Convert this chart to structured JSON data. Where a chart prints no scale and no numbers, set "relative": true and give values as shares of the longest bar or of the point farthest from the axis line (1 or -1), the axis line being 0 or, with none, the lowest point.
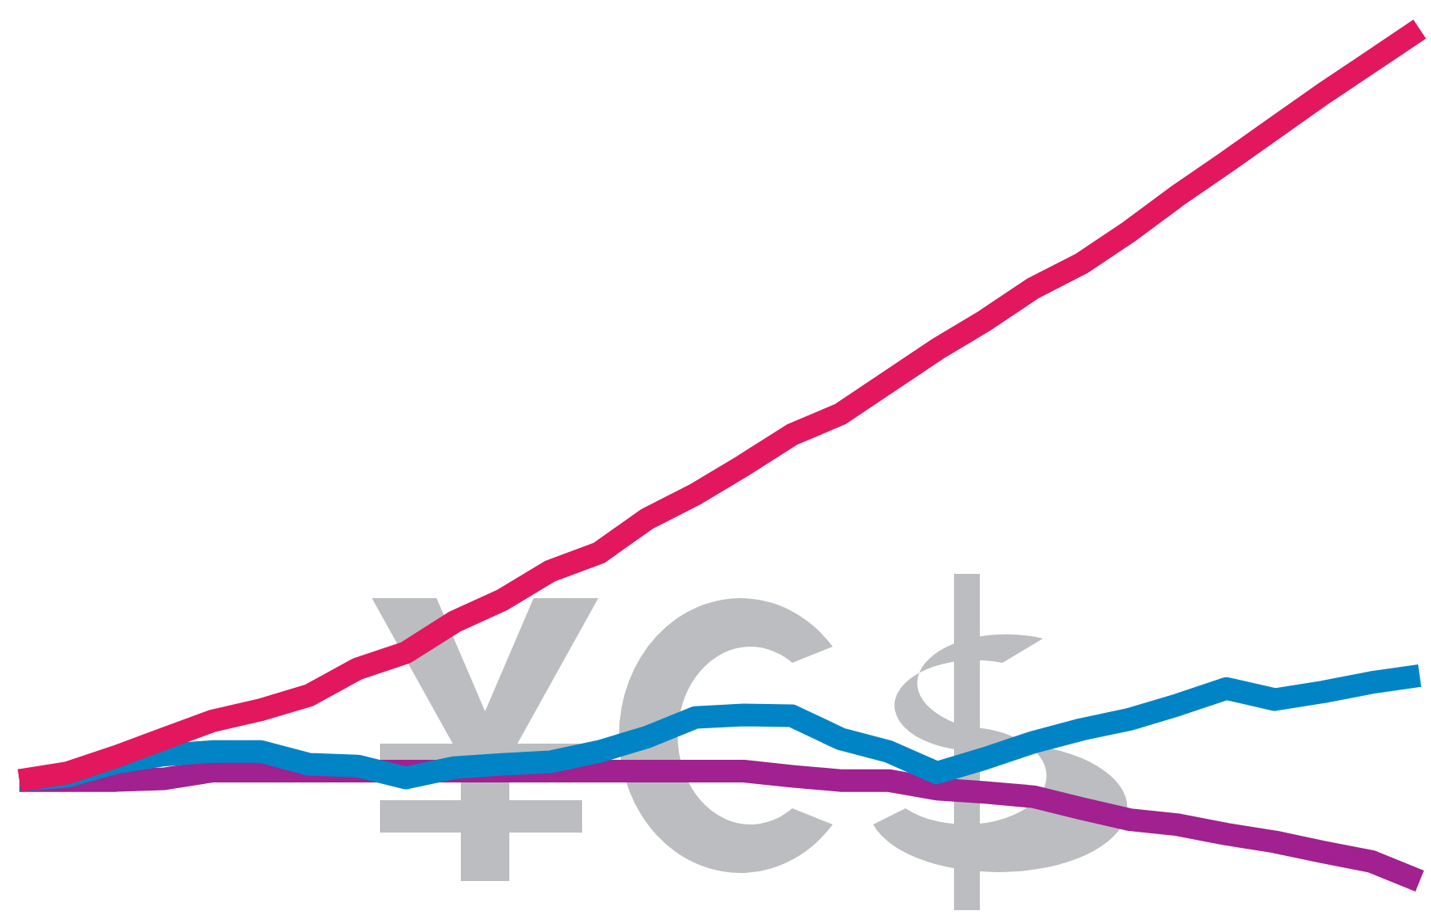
{
  "chart_data": {
    "type": "line",
    "relative": true,
    "categories": [
      null,
      null,
      null,
      null,
      null,
      null,
      null,
      null,
      null,
      null,
      null,
      null,
      null,
      null,
      null,
      null,
      null,
      null,
      null,
      null,
      null,
      null,
      null,
      null,
      null,
      null,
      null,
      null,
      null,
      null
    ],
    "series": [
      {
        "color": "#a0218f",
        "values": [
          0.118,
          0.118,
          0.118,
          0.12,
          0.129,
          0.129,
          0.129,
          0.129,
          0.129,
          0.129,
          0.129,
          0.129,
          0.129,
          0.129,
          0.129,
          0.129,
          0.123,
          0.118,
          0.118,
          0.108,
          0.104,
          0.099,
          0.085,
          0.072,
          0.066,
          0.055,
          0.046,
          0.034,
          0.023,
          0
        ]
      },
      {
        "color": "#0084c6",
        "values": [
          0.118,
          0.123,
          0.139,
          0.148,
          0.152,
          0.152,
          0.137,
          0.135,
          0.121,
          0.133,
          0.137,
          0.14,
          0.152,
          0.169,
          0.192,
          0.195,
          0.194,
          0.167,
          0.152,
          0.127,
          0.144,
          0.163,
          0.178,
          0.19,
          0.207,
          0.226,
          0.213,
          0.222,
          0.233,
          0.241
        ]
      },
      {
        "color": "#e2175e",
        "values": [
          0.118,
          0.127,
          0.146,
          0.167,
          0.188,
          0.201,
          0.218,
          0.249,
          0.268,
          0.304,
          0.33,
          0.364,
          0.385,
          0.425,
          0.454,
          0.488,
          0.524,
          0.548,
          0.586,
          0.624,
          0.658,
          0.696,
          0.725,
          0.763,
          0.805,
          0.844,
          0.884,
          0.924,
          0.962,
          1
        ]
      }
    ],
    "line_style": "solid",
    "marker": "none"
  }
}
